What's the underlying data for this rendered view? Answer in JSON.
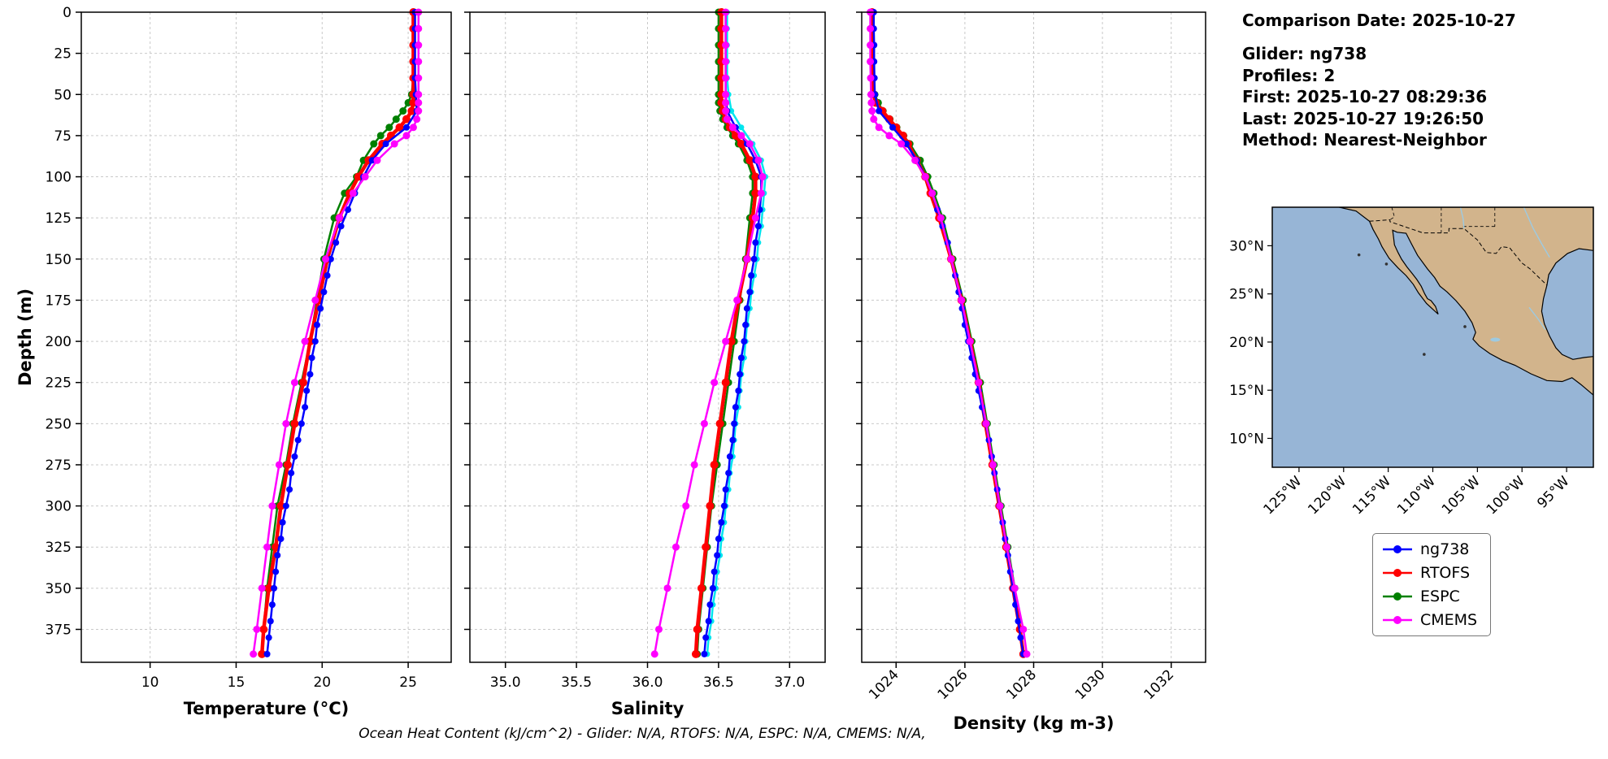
{
  "info": {
    "comparison_date": "Comparison Date: 2025-10-27",
    "glider": "Glider: ng738",
    "profiles": "Profiles: 2",
    "first": "First: 2025-10-27 08:29:36",
    "last": "Last: 2025-10-27 19:26:50",
    "method": "Method: Nearest-Neighbor"
  },
  "footnote": "Ocean Heat Content (kJ/cm^2) - Glider: N/A,  RTOFS: N/A,  ESPC: N/A,  CMEMS: N/A,",
  "legend": {
    "items": [
      {
        "label": "ng738",
        "color": "#0000ff"
      },
      {
        "label": "RTOFS",
        "color": "#ff0000"
      },
      {
        "label": "ESPC",
        "color": "#008000"
      },
      {
        "label": "CMEMS",
        "color": "#ff00ff"
      }
    ]
  },
  "map": {
    "ocean_color": "#97b5d6",
    "land_color": "#d2b48c",
    "river_color": "#9ecae1",
    "extent": {
      "lon": [
        -128,
        -92
      ],
      "lat": [
        7,
        34
      ]
    },
    "lon_ticks": [
      -125,
      -120,
      -115,
      -110,
      -105,
      -100,
      -95
    ],
    "lon_tick_labels": [
      "125°W",
      "120°W",
      "115°W",
      "110°W",
      "105°W",
      "100°W",
      "95°W"
    ],
    "lat_ticks": [
      30,
      25,
      20,
      15,
      10
    ],
    "lat_tick_labels": [
      "30°N",
      "25°N",
      "20°N",
      "15°N",
      "10°N"
    ]
  },
  "depth_axis": {
    "label": "Depth (m)",
    "lim": [
      0,
      395
    ],
    "ticks": [
      0,
      25,
      50,
      75,
      100,
      125,
      150,
      175,
      200,
      225,
      250,
      275,
      300,
      325,
      350,
      375
    ]
  },
  "depths": {
    "glider": [
      0,
      10,
      20,
      30,
      40,
      50,
      60,
      70,
      80,
      90,
      100,
      110,
      120,
      130,
      140,
      150,
      160,
      170,
      180,
      190,
      200,
      210,
      220,
      230,
      240,
      250,
      260,
      270,
      280,
      290,
      300,
      310,
      320,
      330,
      340,
      350,
      360,
      370,
      380,
      390
    ],
    "model": [
      0,
      10,
      20,
      30,
      40,
      50,
      55,
      60,
      65,
      70,
      75,
      80,
      90,
      100,
      110,
      125,
      150,
      175,
      200,
      225,
      250,
      275,
      300,
      325,
      350,
      375,
      390
    ]
  },
  "chart_data": [
    {
      "type": "line",
      "xlabel": "Temperature (°C)",
      "ylabel": "Depth (m)",
      "xlim": [
        6,
        27.5
      ],
      "xticks": [
        10,
        15,
        20,
        25
      ],
      "xtick_labels": [
        "10",
        "15",
        "20",
        "25"
      ],
      "series": [
        {
          "name": "ESPC",
          "color": "#008000",
          "depth_key": "model",
          "values": [
            25.3,
            25.3,
            25.3,
            25.3,
            25.3,
            25.2,
            25.0,
            24.7,
            24.3,
            23.9,
            23.4,
            23.0,
            22.4,
            22.0,
            21.3,
            20.7,
            20.1,
            19.7,
            19.3,
            18.8,
            18.3,
            17.9,
            17.4,
            17.1,
            16.8,
            16.6,
            16.5
          ]
        },
        {
          "name": "RTOFS",
          "color": "#ff0000",
          "depth_key": "model",
          "values": [
            25.3,
            25.3,
            25.3,
            25.3,
            25.3,
            25.3,
            25.3,
            25.2,
            24.9,
            24.5,
            24.0,
            23.5,
            22.7,
            22.1,
            21.6,
            21.0,
            20.3,
            19.8,
            19.3,
            18.9,
            18.4,
            18.0,
            17.6,
            17.3,
            16.9,
            16.6,
            16.5
          ]
        },
        {
          "name": "ng738",
          "color": "#0000ff",
          "depth_key": "glider",
          "values": [
            25.4,
            25.4,
            25.4,
            25.4,
            25.4,
            25.45,
            25.5,
            24.9,
            23.7,
            22.9,
            22.4,
            21.9,
            21.5,
            21.1,
            20.8,
            20.5,
            20.3,
            20.1,
            19.9,
            19.7,
            19.6,
            19.4,
            19.3,
            19.1,
            19.0,
            18.8,
            18.6,
            18.4,
            18.2,
            18.1,
            17.9,
            17.7,
            17.6,
            17.4,
            17.3,
            17.2,
            17.1,
            17.0,
            16.9,
            16.8
          ]
        },
        {
          "name": "CMEMS",
          "color": "#ff00ff",
          "depth_key": "model",
          "values": [
            25.6,
            25.6,
            25.6,
            25.6,
            25.6,
            25.6,
            25.6,
            25.6,
            25.5,
            25.3,
            24.9,
            24.2,
            23.2,
            22.5,
            21.8,
            21.0,
            20.2,
            19.6,
            19.0,
            18.4,
            17.9,
            17.5,
            17.1,
            16.8,
            16.5,
            16.2,
            16.0
          ]
        }
      ]
    },
    {
      "type": "line",
      "xlabel": "Salinity",
      "xlim": [
        34.75,
        37.25
      ],
      "xticks": [
        35.0,
        35.5,
        36.0,
        36.5,
        37.0
      ],
      "xtick_labels": [
        "35.0",
        "35.5",
        "36.0",
        "36.5",
        "37.0"
      ],
      "series": [
        {
          "name": "ESPC",
          "color": "#008000",
          "depth_key": "model",
          "values": [
            36.5,
            36.5,
            36.5,
            36.5,
            36.5,
            36.5,
            36.5,
            36.51,
            36.53,
            36.56,
            36.6,
            36.64,
            36.7,
            36.74,
            36.74,
            36.72,
            36.69,
            36.65,
            36.61,
            36.57,
            36.53,
            36.49,
            36.45,
            36.42,
            36.39,
            36.36,
            36.35
          ]
        },
        {
          "name": "RTOFS",
          "color": "#ff0000",
          "depth_key": "model",
          "values": [
            36.52,
            36.52,
            36.52,
            36.52,
            36.52,
            36.52,
            36.52,
            36.53,
            36.55,
            36.58,
            36.62,
            36.66,
            36.72,
            36.76,
            36.76,
            36.74,
            36.7,
            36.64,
            36.59,
            36.55,
            36.51,
            36.47,
            36.44,
            36.41,
            36.38,
            36.35,
            36.34
          ]
        },
        {
          "name": "ng738-2",
          "color": "#00e5ee",
          "depth_key": "glider",
          "values": [
            36.56,
            36.56,
            36.56,
            36.56,
            36.56,
            36.57,
            36.59,
            36.66,
            36.74,
            36.8,
            36.83,
            36.82,
            36.81,
            36.8,
            36.78,
            36.77,
            36.75,
            36.73,
            36.72,
            36.7,
            36.69,
            36.68,
            36.66,
            36.65,
            36.64,
            36.62,
            36.61,
            36.6,
            36.58,
            36.57,
            36.55,
            36.54,
            36.52,
            36.51,
            36.49,
            36.48,
            36.46,
            36.45,
            36.43,
            36.42
          ]
        },
        {
          "name": "ng738",
          "color": "#0000ff",
          "depth_key": "glider",
          "values": [
            36.55,
            36.55,
            36.55,
            36.55,
            36.55,
            36.55,
            36.56,
            36.62,
            36.7,
            36.76,
            36.8,
            36.8,
            36.79,
            36.78,
            36.76,
            36.75,
            36.73,
            36.72,
            36.7,
            36.69,
            36.68,
            36.66,
            36.65,
            36.64,
            36.62,
            36.61,
            36.6,
            36.58,
            36.57,
            36.55,
            36.54,
            36.52,
            36.5,
            36.49,
            36.47,
            36.46,
            36.44,
            36.43,
            36.41,
            36.4
          ]
        },
        {
          "name": "CMEMS",
          "color": "#ff00ff",
          "depth_key": "model",
          "values": [
            36.55,
            36.55,
            36.55,
            36.55,
            36.55,
            36.55,
            36.55,
            36.55,
            36.56,
            36.6,
            36.66,
            36.72,
            36.78,
            36.81,
            36.8,
            36.76,
            36.7,
            36.63,
            36.55,
            36.47,
            36.4,
            36.33,
            36.27,
            36.2,
            36.14,
            36.08,
            36.05
          ]
        }
      ]
    },
    {
      "type": "line",
      "xlabel": "Density (kg m-3)",
      "xlim": [
        1023,
        1033
      ],
      "xticks": [
        1024,
        1026,
        1028,
        1030,
        1032
      ],
      "xtick_labels": [
        "1024",
        "1026",
        "1028",
        "1030",
        "1032"
      ],
      "xtick_rotation": 45,
      "series": [
        {
          "name": "ESPC",
          "color": "#008000",
          "depth_key": "model",
          "values": [
            1023.3,
            1023.3,
            1023.3,
            1023.31,
            1023.33,
            1023.38,
            1023.48,
            1023.62,
            1023.82,
            1024.02,
            1024.22,
            1024.4,
            1024.7,
            1024.92,
            1025.1,
            1025.35,
            1025.65,
            1025.95,
            1026.2,
            1026.45,
            1026.65,
            1026.85,
            1027.05,
            1027.25,
            1027.45,
            1027.6,
            1027.7
          ]
        },
        {
          "name": "RTOFS",
          "color": "#ff0000",
          "depth_key": "model",
          "values": [
            1023.3,
            1023.3,
            1023.3,
            1023.31,
            1023.32,
            1023.35,
            1023.4,
            1023.6,
            1023.8,
            1024.0,
            1024.2,
            1024.35,
            1024.6,
            1024.85,
            1025.0,
            1025.25,
            1025.6,
            1025.9,
            1026.15,
            1026.4,
            1026.6,
            1026.8,
            1027.0,
            1027.2,
            1027.4,
            1027.6,
            1027.7
          ]
        },
        {
          "name": "ng738",
          "color": "#0000ff",
          "depth_key": "glider",
          "values": [
            1023.35,
            1023.35,
            1023.36,
            1023.36,
            1023.37,
            1023.38,
            1023.5,
            1023.9,
            1024.3,
            1024.6,
            1024.85,
            1025.05,
            1025.2,
            1025.35,
            1025.5,
            1025.6,
            1025.72,
            1025.82,
            1025.92,
            1026.0,
            1026.1,
            1026.2,
            1026.3,
            1026.4,
            1026.5,
            1026.6,
            1026.7,
            1026.78,
            1026.86,
            1026.94,
            1027.0,
            1027.1,
            1027.17,
            1027.25,
            1027.32,
            1027.4,
            1027.47,
            1027.55,
            1027.62,
            1027.7
          ]
        },
        {
          "name": "CMEMS",
          "color": "#ff00ff",
          "depth_key": "model",
          "values": [
            1023.25,
            1023.25,
            1023.25,
            1023.25,
            1023.26,
            1023.27,
            1023.28,
            1023.3,
            1023.35,
            1023.5,
            1023.8,
            1024.15,
            1024.55,
            1024.85,
            1025.05,
            1025.3,
            1025.6,
            1025.9,
            1026.15,
            1026.4,
            1026.62,
            1026.82,
            1027.02,
            1027.22,
            1027.45,
            1027.7,
            1027.8
          ]
        }
      ]
    }
  ]
}
